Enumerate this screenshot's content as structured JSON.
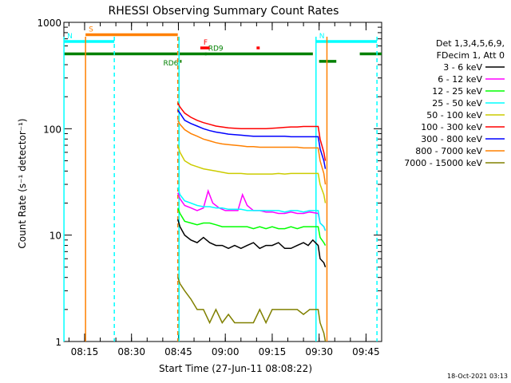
{
  "chart_data": {
    "type": "line",
    "title": "RHESSI Observing Summary Count Rates",
    "xlabel": "Start Time (27-Jun-11 08:08:22)",
    "ylabel": "Count Rate (s⁻¹ detector⁻¹)",
    "y_scale": "log",
    "ylim": [
      1,
      1000
    ],
    "xlim_minutes": [
      488.37,
      590.0
    ],
    "x_ticks": [
      {
        "label": "08:15",
        "minutes": 495
      },
      {
        "label": "08:30",
        "minutes": 510
      },
      {
        "label": "08:45",
        "minutes": 525
      },
      {
        "label": "09:00",
        "minutes": 540
      },
      {
        "label": "09:15",
        "minutes": 555
      },
      {
        "label": "09:30",
        "minutes": 570
      },
      {
        "label": "09:45",
        "minutes": 585
      }
    ],
    "y_ticks": [
      {
        "label": "1",
        "value": 1
      },
      {
        "label": "10",
        "value": 10
      },
      {
        "label": "100",
        "value": 100
      },
      {
        "label": "1000",
        "value": 1000
      }
    ],
    "legend_header": [
      "Det 1,3,4,5,6,9,",
      "FDecim 1, Att 0"
    ],
    "legend_position": "right",
    "series": [
      {
        "name": "3 - 6 keV",
        "color": "#000000",
        "x": [
          524.8,
          525.5,
          527,
          529,
          531,
          533,
          535,
          537,
          539,
          541,
          543,
          545,
          547,
          549,
          551,
          553,
          555,
          557,
          559,
          561,
          563,
          565,
          566.5,
          568,
          569.7,
          570.3,
          571.5,
          572
        ],
        "y": [
          14,
          12,
          10,
          9,
          8.5,
          9.5,
          8.5,
          8,
          8,
          7.5,
          8,
          7.5,
          8,
          8.5,
          7.5,
          8,
          8,
          8.5,
          7.5,
          7.5,
          8,
          8.5,
          8,
          9,
          8,
          6,
          5.5,
          5
        ]
      },
      {
        "name": "6 - 12 keV",
        "color": "#ff00ff",
        "x": [
          524.8,
          525.5,
          527,
          529,
          531,
          533,
          534.5,
          536,
          538,
          540,
          542,
          544,
          545.5,
          547,
          549,
          551,
          553,
          555,
          557,
          559,
          561,
          563,
          565,
          567,
          569.7,
          570.3,
          571.5,
          572
        ],
        "y": [
          25,
          22,
          19,
          18,
          17,
          18,
          26,
          20,
          18,
          17,
          17,
          17,
          24,
          19,
          17,
          17,
          16.5,
          16.5,
          16,
          16,
          16.5,
          16,
          16,
          16.5,
          16,
          13,
          12,
          11
        ]
      },
      {
        "name": "12 - 25 keV",
        "color": "#00ff00",
        "x": [
          524.8,
          525.5,
          527,
          529,
          531,
          533,
          535,
          537,
          539,
          541,
          543,
          545,
          547,
          549,
          551,
          553,
          555,
          557,
          559,
          561,
          563,
          565,
          567,
          569.7,
          570.3,
          571.5,
          572
        ],
        "y": [
          18,
          16,
          13.5,
          13,
          12.5,
          13,
          13,
          12.5,
          12,
          12,
          12,
          12,
          12,
          11.5,
          12,
          11.5,
          12,
          11.5,
          11.5,
          12,
          11.5,
          12,
          12,
          12,
          9.5,
          8.5,
          8
        ]
      },
      {
        "name": "25 - 50 keV",
        "color": "#00ffff",
        "x": [
          524.8,
          525.5,
          527,
          529,
          531,
          533,
          535,
          537,
          539,
          541,
          543,
          545,
          547,
          549,
          551,
          553,
          555,
          557,
          559,
          561,
          563,
          565,
          567,
          569.7,
          570.3,
          571.5,
          572
        ],
        "y": [
          28,
          24,
          21,
          20,
          19,
          18.5,
          18.5,
          18,
          18,
          17.5,
          17.5,
          17.5,
          17,
          17,
          17,
          17,
          17,
          17,
          16.5,
          17,
          17,
          16.5,
          17,
          17,
          13,
          12,
          11
        ]
      },
      {
        "name": "50 - 100 keV",
        "color": "#cccc00",
        "x": [
          524.8,
          525.5,
          527,
          529,
          531,
          533,
          535,
          537,
          539,
          541,
          543,
          545,
          547,
          549,
          551,
          553,
          555,
          557,
          559,
          561,
          563,
          565,
          567,
          569.7,
          570.3,
          571.5,
          572
        ],
        "y": [
          70,
          60,
          50,
          46,
          44,
          42,
          41,
          40,
          39,
          38,
          38,
          38,
          37.5,
          37.5,
          37.5,
          37.5,
          37.5,
          38,
          37.5,
          38,
          38,
          38,
          38,
          38,
          30,
          24,
          20
        ]
      },
      {
        "name": "100 - 300 keV",
        "color": "#ff0000",
        "x": [
          524.8,
          525.5,
          527,
          529,
          531,
          533,
          535,
          537,
          539,
          541,
          543,
          545,
          547,
          549,
          551,
          553,
          555,
          557,
          559,
          561,
          563,
          565,
          567,
          569.7,
          570.3,
          571.5,
          572
        ],
        "y": [
          175,
          160,
          140,
          128,
          120,
          114,
          110,
          106,
          104,
          102,
          101,
          100,
          100,
          100,
          100,
          100,
          101,
          102,
          103,
          104,
          104,
          105,
          105,
          105,
          80,
          60,
          50
        ]
      },
      {
        "name": "300 - 800 keV",
        "color": "#0000ff",
        "x": [
          524.8,
          525.5,
          527,
          529,
          531,
          533,
          535,
          537,
          539,
          541,
          543,
          545,
          547,
          549,
          551,
          553,
          555,
          557,
          559,
          561,
          563,
          565,
          567,
          569.7,
          570.3,
          571.5,
          572
        ],
        "y": [
          150,
          140,
          120,
          112,
          106,
          100,
          96,
          93,
          91,
          89,
          88,
          87,
          86,
          85,
          85,
          85,
          85,
          85,
          85,
          84,
          84,
          84,
          84,
          84,
          65,
          50,
          42
        ]
      },
      {
        "name": "800 - 7000 keV",
        "color": "#ff8000",
        "x": [
          524.8,
          525.5,
          527,
          529,
          531,
          533,
          535,
          537,
          539,
          541,
          543,
          545,
          547,
          549,
          551,
          553,
          555,
          557,
          559,
          561,
          563,
          565,
          567,
          569.7,
          570.3,
          571.5,
          572
        ],
        "y": [
          120,
          110,
          98,
          90,
          85,
          80,
          77,
          74,
          72,
          71,
          70,
          69,
          68,
          68,
          67,
          67,
          67,
          67,
          67,
          67,
          67,
          66,
          66,
          66,
          50,
          38,
          30
        ]
      },
      {
        "name": "7000 - 15000 keV",
        "color": "#808000",
        "x": [
          524.8,
          525.5,
          527,
          529,
          531,
          533,
          535,
          537,
          539,
          541,
          543,
          545,
          547,
          549,
          551,
          553,
          555,
          557,
          559,
          561,
          563,
          565,
          567,
          569.7,
          570.3,
          571.5,
          572
        ],
        "y": [
          4,
          3.5,
          3,
          2.5,
          2,
          2,
          1.5,
          2,
          1.5,
          1.8,
          1.5,
          1.5,
          1.5,
          1.5,
          2,
          1.5,
          2,
          2,
          2,
          2,
          2,
          1.8,
          2,
          2,
          1.5,
          1.2,
          1
        ]
      }
    ],
    "flag_bars": [
      {
        "label": "S",
        "color": "#ff8000",
        "x0": 495.3,
        "x1": 524.8,
        "y": 765
      },
      {
        "label": "N",
        "color": "#00ffff",
        "x0": 488.4,
        "x1": 504.5,
        "y": 660
      },
      {
        "label": "N",
        "color": "#00ffff",
        "x0": 569.0,
        "x1": 588.5,
        "y": 660
      },
      {
        "label": "",
        "color": "#008000",
        "x0": 488.4,
        "x1": 568.0,
        "y": 505
      },
      {
        "label": "",
        "color": "#008000",
        "x0": 583.0,
        "x1": 590.0,
        "y": 505
      },
      {
        "label": "",
        "color": "#008000",
        "x0": 570.0,
        "x1": 575.5,
        "y": 430
      },
      {
        "label": "RD6",
        "color": "#008000",
        "x0": 525.5,
        "x1": 526.0,
        "y": 430
      },
      {
        "label": "RD9",
        "color": "#008000",
        "x0": 533.5,
        "x1": 534.0,
        "y": 505
      },
      {
        "label": "F",
        "color": "#ff0000",
        "x0": 532.0,
        "x1": 535.0,
        "y": 575
      },
      {
        "label": "",
        "color": "#ff0000",
        "x0": 550.0,
        "x1": 551.0,
        "y": 575
      }
    ],
    "vertical_lines": [
      {
        "minutes": 488.4,
        "color": "#00ffff",
        "style": "solid"
      },
      {
        "minutes": 495.3,
        "color": "#ff8000",
        "style": "solid"
      },
      {
        "minutes": 504.5,
        "color": "#00ffff",
        "style": "dashed"
      },
      {
        "minutes": 524.8,
        "color": "#ff8000",
        "style": "dashed"
      },
      {
        "minutes": 525.2,
        "color": "#00ffff",
        "style": "solid"
      },
      {
        "minutes": 569.0,
        "color": "#00ffff",
        "style": "solid"
      },
      {
        "minutes": 572.5,
        "color": "#ff8000",
        "style": "solid"
      },
      {
        "minutes": 588.5,
        "color": "#00ffff",
        "style": "dashed"
      }
    ]
  },
  "footer": {
    "timestamp": "18-Oct-2021 03:13"
  }
}
